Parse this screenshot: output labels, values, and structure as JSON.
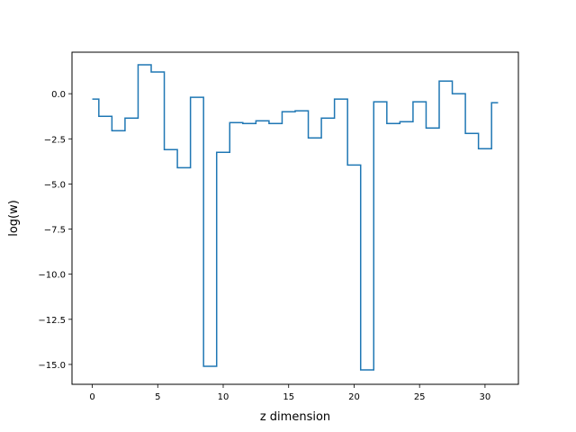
{
  "chart_data": {
    "type": "line",
    "drawstyle": "steps-mid",
    "title": "",
    "xlabel": "z dimension",
    "ylabel": "log(w)",
    "xlim": [
      -1.55,
      32.55
    ],
    "ylim": [
      -16.1,
      2.3
    ],
    "xticks": [
      0,
      5,
      10,
      15,
      20,
      25,
      30
    ],
    "xtick_labels": [
      "0",
      "5",
      "10",
      "15",
      "20",
      "25",
      "30"
    ],
    "yticks": [
      0.0,
      -2.5,
      -5.0,
      -7.5,
      -10.0,
      -12.5,
      -15.0
    ],
    "ytick_labels": [
      "0.0",
      "−2.5",
      "−5.0",
      "−7.5",
      "−10.0",
      "−12.5",
      "−15.0"
    ],
    "grid": false,
    "legend": "none",
    "series": [
      {
        "color": "#1f77b4",
        "x": [
          0,
          1,
          2,
          3,
          4,
          5,
          6,
          7,
          8,
          9,
          10,
          11,
          12,
          13,
          14,
          15,
          16,
          17,
          18,
          19,
          20,
          21,
          22,
          23,
          24,
          25,
          26,
          27,
          28,
          29,
          30,
          31
        ],
        "y": [
          -0.3,
          -1.25,
          -2.05,
          -1.35,
          1.6,
          1.2,
          -3.1,
          -4.1,
          -0.2,
          -15.1,
          -3.25,
          -1.6,
          -1.65,
          -1.5,
          -1.65,
          -1.0,
          -0.95,
          -2.45,
          -1.35,
          -0.3,
          -3.95,
          -15.3,
          -0.45,
          -1.65,
          -1.55,
          -0.45,
          -1.9,
          0.7,
          0.0,
          -2.2,
          -3.05,
          -0.5
        ]
      }
    ]
  }
}
